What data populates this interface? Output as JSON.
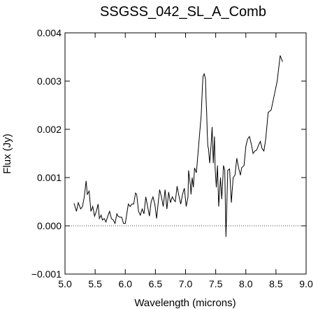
{
  "chart_data": {
    "type": "line",
    "title": "SSGSS_042_SL_A_Comb",
    "xlabel": "Wavelength (microns)",
    "ylabel": "Flux (Jy)",
    "xlim": [
      5.0,
      9.0
    ],
    "ylim": [
      -0.001,
      0.004
    ],
    "x_ticks": [
      5.0,
      5.5,
      6.0,
      6.5,
      7.0,
      7.5,
      8.0,
      8.5,
      9.0
    ],
    "x_tick_labels": [
      "5.0",
      "5.5",
      "6.0",
      "6.5",
      "7.0",
      "7.5",
      "8.0",
      "8.5",
      "9.0"
    ],
    "y_ticks": [
      -0.001,
      0.0,
      0.001,
      0.002,
      0.003,
      0.004
    ],
    "y_tick_labels": [
      "−0.001",
      "0.000",
      "0.001",
      "0.002",
      "0.003",
      "0.004"
    ],
    "reference_line": {
      "y": 0.0,
      "style": "dotted"
    },
    "grid": false,
    "legend": "none",
    "series": [
      {
        "x": [
          5.15,
          5.19,
          5.22,
          5.26,
          5.29,
          5.32,
          5.35,
          5.37,
          5.4,
          5.43,
          5.46,
          5.49,
          5.52,
          5.55,
          5.57,
          5.6,
          5.62,
          5.65,
          5.68,
          5.71,
          5.74,
          5.77,
          5.8,
          5.83,
          5.86,
          5.88,
          5.91,
          5.94,
          5.97,
          6.0,
          6.05,
          6.08,
          6.11,
          6.14,
          6.17,
          6.19,
          6.22,
          6.25,
          6.28,
          6.31,
          6.34,
          6.37,
          6.4,
          6.43,
          6.46,
          6.49,
          6.52,
          6.54,
          6.57,
          6.6,
          6.63,
          6.66,
          6.69,
          6.72,
          6.75,
          6.78,
          6.8,
          6.83,
          6.86,
          6.89,
          6.92,
          6.95,
          6.98,
          7.01,
          7.04,
          7.05,
          7.08,
          7.09,
          7.11,
          7.13,
          7.15,
          7.18,
          7.23,
          7.26,
          7.28,
          7.29,
          7.31,
          7.33,
          7.34,
          7.35,
          7.36,
          7.37,
          7.38,
          7.4,
          7.42,
          7.44,
          7.46,
          7.48,
          7.49,
          7.51,
          7.53,
          7.55,
          7.58,
          7.6,
          7.63,
          7.65,
          7.67,
          7.7,
          7.73,
          7.76,
          7.79,
          7.82,
          7.85,
          7.88,
          7.91,
          7.93,
          7.97,
          8.0,
          8.03,
          8.06,
          8.09,
          8.12,
          8.15,
          8.18,
          8.21,
          8.24,
          8.27,
          8.3,
          8.33,
          8.37,
          8.42,
          8.47,
          8.52,
          8.57,
          8.61
        ],
        "y": [
          0.00047,
          0.0003,
          0.00048,
          0.00035,
          0.0004,
          0.0006,
          0.00093,
          0.00065,
          0.00072,
          0.0003,
          0.0004,
          0.0002,
          0.0003,
          0.00045,
          0.00015,
          0.00022,
          0.00012,
          0.00015,
          8e-05,
          0.0002,
          0.0003,
          0.00015,
          0.00012,
          5e-05,
          0.00025,
          0.0002,
          0.00018,
          0.00018,
          5e-05,
          5e-05,
          0.00045,
          0.0004,
          0.00045,
          0.00045,
          0.00068,
          0.00065,
          0.0003,
          0.00022,
          0.00035,
          0.00025,
          0.0006,
          0.0004,
          0.0002,
          0.0005,
          0.0006,
          0.00045,
          0.00015,
          0.0004,
          0.00075,
          0.0006,
          0.0004,
          0.00075,
          0.00035,
          0.0007,
          0.00048,
          0.0006,
          0.00055,
          0.0005,
          0.00082,
          0.00062,
          0.00045,
          0.00065,
          0.00078,
          0.0004,
          0.0006,
          0.00115,
          0.00085,
          0.00065,
          0.001,
          0.0008,
          0.0012,
          0.0011,
          0.00185,
          0.0023,
          0.0029,
          0.0031,
          0.00315,
          0.00305,
          0.00265,
          0.00235,
          0.0019,
          0.00165,
          0.0016,
          0.0013,
          0.0016,
          0.00205,
          0.0013,
          0.00185,
          0.0012,
          0.0008,
          0.00125,
          0.0004,
          0.001,
          0.00055,
          0.00125,
          0.00115,
          -0.00023,
          0.00115,
          0.00118,
          0.00048,
          0.001,
          0.00105,
          0.0014,
          0.0012,
          0.00105,
          0.0012,
          0.00125,
          0.00165,
          0.0018,
          0.00185,
          0.0017,
          0.0015,
          0.00155,
          0.00157,
          0.00167,
          0.00175,
          0.0016,
          0.00155,
          0.0018,
          0.00235,
          0.0024,
          0.0027,
          0.003,
          0.00353,
          0.0034
        ]
      }
    ]
  }
}
